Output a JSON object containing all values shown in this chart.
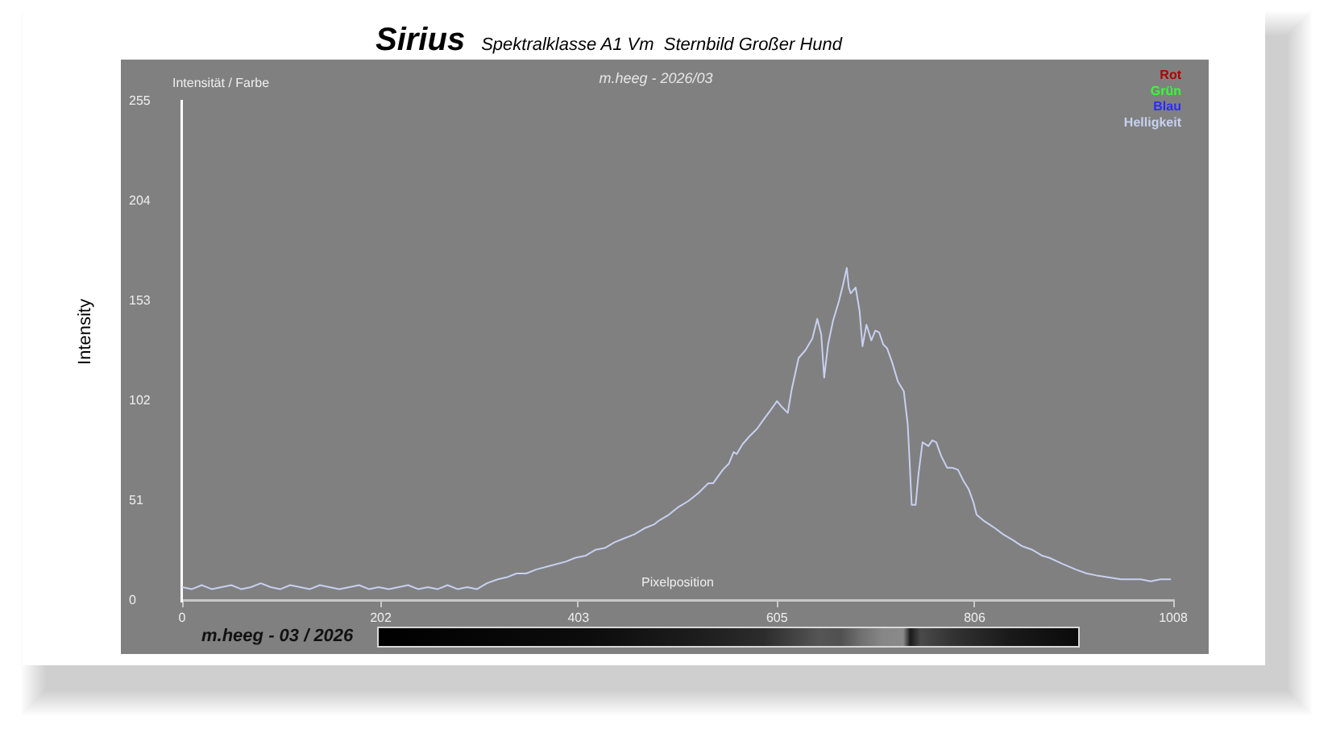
{
  "chart_data": {
    "type": "line",
    "title": "Sirius",
    "subtitle": "Spektralklasse A1 Vm  Sternbild Großer Hund",
    "xlabel": "Pixelposition",
    "ylabel": "Intensity",
    "annotations": [
      "Intensität / Farbe",
      "m.heeg - 2026/03",
      "m.heeg - 03 / 2026"
    ],
    "x": [
      0,
      10,
      20,
      30,
      40,
      50,
      60,
      70,
      80,
      90,
      100,
      110,
      120,
      130,
      140,
      150,
      160,
      170,
      180,
      190,
      200,
      210,
      220,
      230,
      240,
      250,
      260,
      270,
      280,
      290,
      300,
      310,
      321,
      330,
      340,
      350,
      360,
      375,
      390,
      400,
      410,
      420,
      430,
      440,
      450,
      460,
      470,
      480,
      485,
      495,
      505,
      515,
      525,
      535,
      540,
      550,
      556,
      561,
      564,
      570,
      577,
      585,
      592,
      598,
      605,
      610,
      616,
      620,
      627,
      634,
      641,
      646,
      650,
      653,
      657,
      662,
      668,
      672,
      676,
      678,
      680,
      685,
      689,
      692,
      696,
      701,
      705,
      709,
      713,
      717,
      722,
      728,
      734,
      738,
      740,
      742,
      746,
      749,
      753,
      759,
      763,
      767,
      772,
      778,
      783,
      789,
      795,
      800,
      805,
      808,
      815,
      821,
      827,
      835,
      845,
      854,
      865,
      875,
      882,
      895,
      909,
      920,
      930,
      942,
      955,
      965,
      975,
      985,
      995,
      1005
    ],
    "series": [
      {
        "name": "Rot",
        "color": "#b00000",
        "values": [
          null,
          null,
          null,
          null,
          null,
          null,
          null,
          null,
          null,
          null,
          null,
          null,
          null,
          null,
          null,
          null,
          null,
          null,
          null,
          null,
          null,
          null,
          null,
          null,
          null,
          null,
          null,
          null,
          null,
          null,
          null,
          null,
          null,
          null,
          null,
          null,
          null,
          null,
          null,
          null,
          null,
          null,
          null,
          null,
          null,
          null,
          null,
          null,
          null,
          null,
          null,
          null,
          null,
          null,
          null,
          null,
          null,
          null,
          null,
          null,
          null,
          null,
          null,
          null,
          null,
          null,
          null,
          null,
          null,
          null,
          null,
          null,
          null,
          null,
          null,
          null,
          null,
          null,
          null,
          null,
          null,
          null,
          null,
          null,
          null,
          null,
          null,
          null,
          null,
          null,
          null,
          null,
          null,
          null,
          null,
          null,
          null,
          null,
          null,
          null,
          null,
          null,
          null,
          null,
          null,
          null,
          null,
          null,
          null,
          null,
          null,
          null,
          null,
          null,
          null,
          null,
          null,
          null,
          null,
          null,
          null,
          null,
          null,
          null,
          null,
          null,
          null,
          null,
          null,
          null
        ]
      },
      {
        "name": "Grün",
        "color": "#33ff33",
        "values": [
          null,
          null,
          null,
          null,
          null,
          null,
          null,
          null,
          null,
          null,
          null,
          null,
          null,
          null,
          null,
          null,
          null,
          null,
          null,
          null,
          null,
          null,
          null,
          null,
          null,
          null,
          null,
          null,
          null,
          null,
          null,
          null,
          null,
          null,
          null,
          null,
          null,
          null,
          null,
          null,
          null,
          null,
          null,
          null,
          null,
          null,
          null,
          null,
          null,
          null,
          null,
          null,
          null,
          null,
          null,
          null,
          null,
          null,
          null,
          null,
          null,
          null,
          null,
          null,
          null,
          null,
          null,
          null,
          null,
          null,
          null,
          null,
          null,
          null,
          null,
          null,
          null,
          null,
          null,
          null,
          null,
          null,
          null,
          null,
          null,
          null,
          null,
          null,
          null,
          null,
          null,
          null,
          null,
          null,
          null,
          null,
          null,
          null,
          null,
          null,
          null,
          null,
          null,
          null,
          null,
          null,
          null,
          null,
          null,
          null,
          null,
          null,
          null,
          null,
          null,
          null,
          null,
          null,
          null,
          null,
          null,
          null,
          null,
          null,
          null,
          null,
          null,
          null,
          null,
          null
        ]
      },
      {
        "name": "Blau",
        "color": "#2a2aff",
        "values": [
          null,
          null,
          null,
          null,
          null,
          null,
          null,
          null,
          null,
          null,
          null,
          null,
          null,
          null,
          null,
          null,
          null,
          null,
          null,
          null,
          null,
          null,
          null,
          null,
          null,
          null,
          null,
          null,
          null,
          null,
          null,
          null,
          null,
          null,
          null,
          null,
          null,
          null,
          null,
          null,
          null,
          null,
          null,
          null,
          null,
          null,
          null,
          null,
          null,
          null,
          null,
          null,
          null,
          null,
          null,
          null,
          null,
          null,
          null,
          null,
          null,
          null,
          null,
          null,
          null,
          null,
          null,
          null,
          null,
          null,
          null,
          null,
          null,
          null,
          null,
          null,
          null,
          null,
          null,
          null,
          null,
          null,
          null,
          null,
          null,
          null,
          null,
          null,
          null,
          null,
          null,
          null,
          null,
          null,
          null,
          null,
          null,
          null,
          null,
          null,
          null,
          null,
          null,
          null,
          null,
          null,
          null,
          null,
          null,
          null,
          null,
          null,
          null,
          null,
          null,
          null,
          null,
          null,
          null,
          null,
          null,
          null,
          null,
          null,
          null,
          null,
          null,
          null,
          null,
          null
        ]
      },
      {
        "name": "Helligkeit",
        "color": "#c8d0f0",
        "values": [
          7,
          6,
          8,
          6,
          7,
          8,
          6,
          7,
          9,
          7,
          6,
          8,
          7,
          6,
          8,
          7,
          6,
          7,
          8,
          6,
          7,
          6,
          7,
          8,
          6,
          7,
          6,
          8,
          6,
          7,
          6,
          9,
          11,
          12,
          14,
          14,
          16,
          18,
          20,
          22,
          23,
          26,
          27,
          30,
          32,
          34,
          37,
          39,
          41,
          44,
          48,
          51,
          55,
          60,
          60,
          67,
          70,
          76,
          75,
          80,
          84,
          88,
          93,
          97,
          102,
          99,
          96,
          108,
          124,
          128,
          134,
          144,
          136,
          114,
          131,
          143,
          153,
          161,
          170,
          160,
          157,
          160,
          148,
          130,
          141,
          133,
          138,
          137,
          131,
          129,
          122,
          112,
          107,
          90,
          70,
          49,
          49,
          65,
          81,
          79,
          82,
          81,
          74,
          68,
          68,
          67,
          61,
          57,
          50,
          44,
          41,
          39,
          37,
          34,
          31,
          28,
          26,
          23,
          22,
          19,
          16,
          14,
          13,
          12,
          11,
          11,
          11,
          10,
          11,
          11
        ]
      }
    ],
    "xlim": [
      0,
      1008
    ],
    "xticks": [
      0,
      202,
      403,
      605,
      806,
      1008
    ],
    "ylim": [
      0,
      255
    ],
    "yticks": [
      0,
      51,
      102,
      153,
      204,
      255
    ],
    "legend": "top right"
  }
}
